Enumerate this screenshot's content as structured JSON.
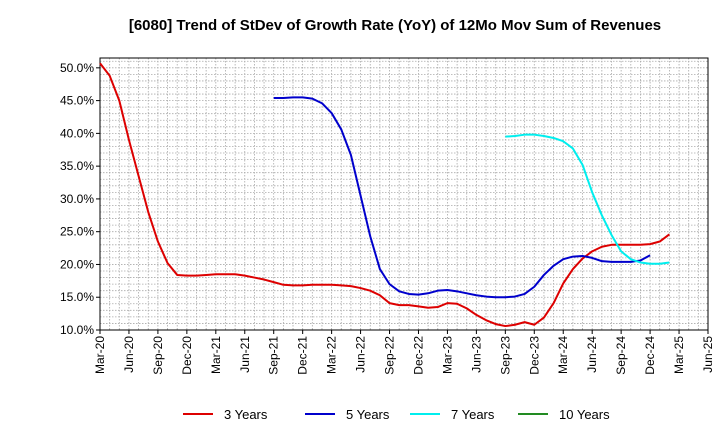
{
  "chart_data": {
    "type": "line",
    "title": "[6080]  Trend of StDev of Growth Rate (YoY) of 12Mo Mov Sum of Revenues",
    "xlabel": "",
    "ylabel": "",
    "ylim": [
      10,
      51.5
    ],
    "y_ticks": [
      10,
      15,
      20,
      25,
      30,
      35,
      40,
      45,
      50
    ],
    "y_tick_labels": [
      "10.0%",
      "15.0%",
      "20.0%",
      "25.0%",
      "30.0%",
      "35.0%",
      "40.0%",
      "45.0%",
      "50.0%"
    ],
    "x_tick_labels": [
      "Mar-20",
      "Jun-20",
      "Sep-20",
      "Dec-20",
      "Mar-21",
      "Jun-21",
      "Sep-21",
      "Dec-21",
      "Mar-22",
      "Jun-22",
      "Sep-22",
      "Dec-22",
      "Mar-23",
      "Jun-23",
      "Sep-23",
      "Dec-23",
      "Mar-24",
      "Jun-24",
      "Sep-24",
      "Dec-24",
      "Mar-25",
      "Jun-25"
    ],
    "months_total": 63,
    "grid": true,
    "legend_position": "bottom",
    "series": [
      {
        "name": "3 Years",
        "color": "#dd0000",
        "start_index": 0,
        "values": [
          50.7,
          48.8,
          45.0,
          39.0,
          33.5,
          28.0,
          23.5,
          20.2,
          18.4,
          18.3,
          18.3,
          18.4,
          18.5,
          18.5,
          18.5,
          18.3,
          18.0,
          17.7,
          17.3,
          16.9,
          16.8,
          16.8,
          16.9,
          16.9,
          16.9,
          16.8,
          16.7,
          16.4,
          16.0,
          15.3,
          14.1,
          13.8,
          13.8,
          13.6,
          13.4,
          13.5,
          14.1,
          14.0,
          13.3,
          12.3,
          11.5,
          10.9,
          10.6,
          10.8,
          11.2,
          10.8,
          11.9,
          14.1,
          17.1,
          19.3,
          20.9,
          22.0,
          22.7,
          23.0,
          23.0,
          23.0,
          23.0,
          23.1,
          23.5,
          24.6
        ]
      },
      {
        "name": "5 Years",
        "color": "#0000cc",
        "start_index": 18,
        "values": [
          45.4,
          45.4,
          45.5,
          45.5,
          45.3,
          44.6,
          43.1,
          40.6,
          36.7,
          30.5,
          24.3,
          19.3,
          17.0,
          15.9,
          15.5,
          15.4,
          15.6,
          16.0,
          16.1,
          15.9,
          15.6,
          15.3,
          15.1,
          15.0,
          15.0,
          15.1,
          15.5,
          16.6,
          18.4,
          19.8,
          20.8,
          21.2,
          21.3,
          21.0,
          20.5,
          20.4,
          20.4,
          20.4,
          20.6,
          21.4
        ]
      },
      {
        "name": "7 Years",
        "color": "#00eeee",
        "start_index": 42,
        "values": [
          39.5,
          39.6,
          39.8,
          39.8,
          39.6,
          39.3,
          38.8,
          37.7,
          35.2,
          31.0,
          27.5,
          24.5,
          22.0,
          20.8,
          20.3,
          20.1,
          20.1,
          20.3
        ]
      },
      {
        "name": "10 Years",
        "color": "#228B22",
        "start_index": 0,
        "values": []
      }
    ]
  }
}
